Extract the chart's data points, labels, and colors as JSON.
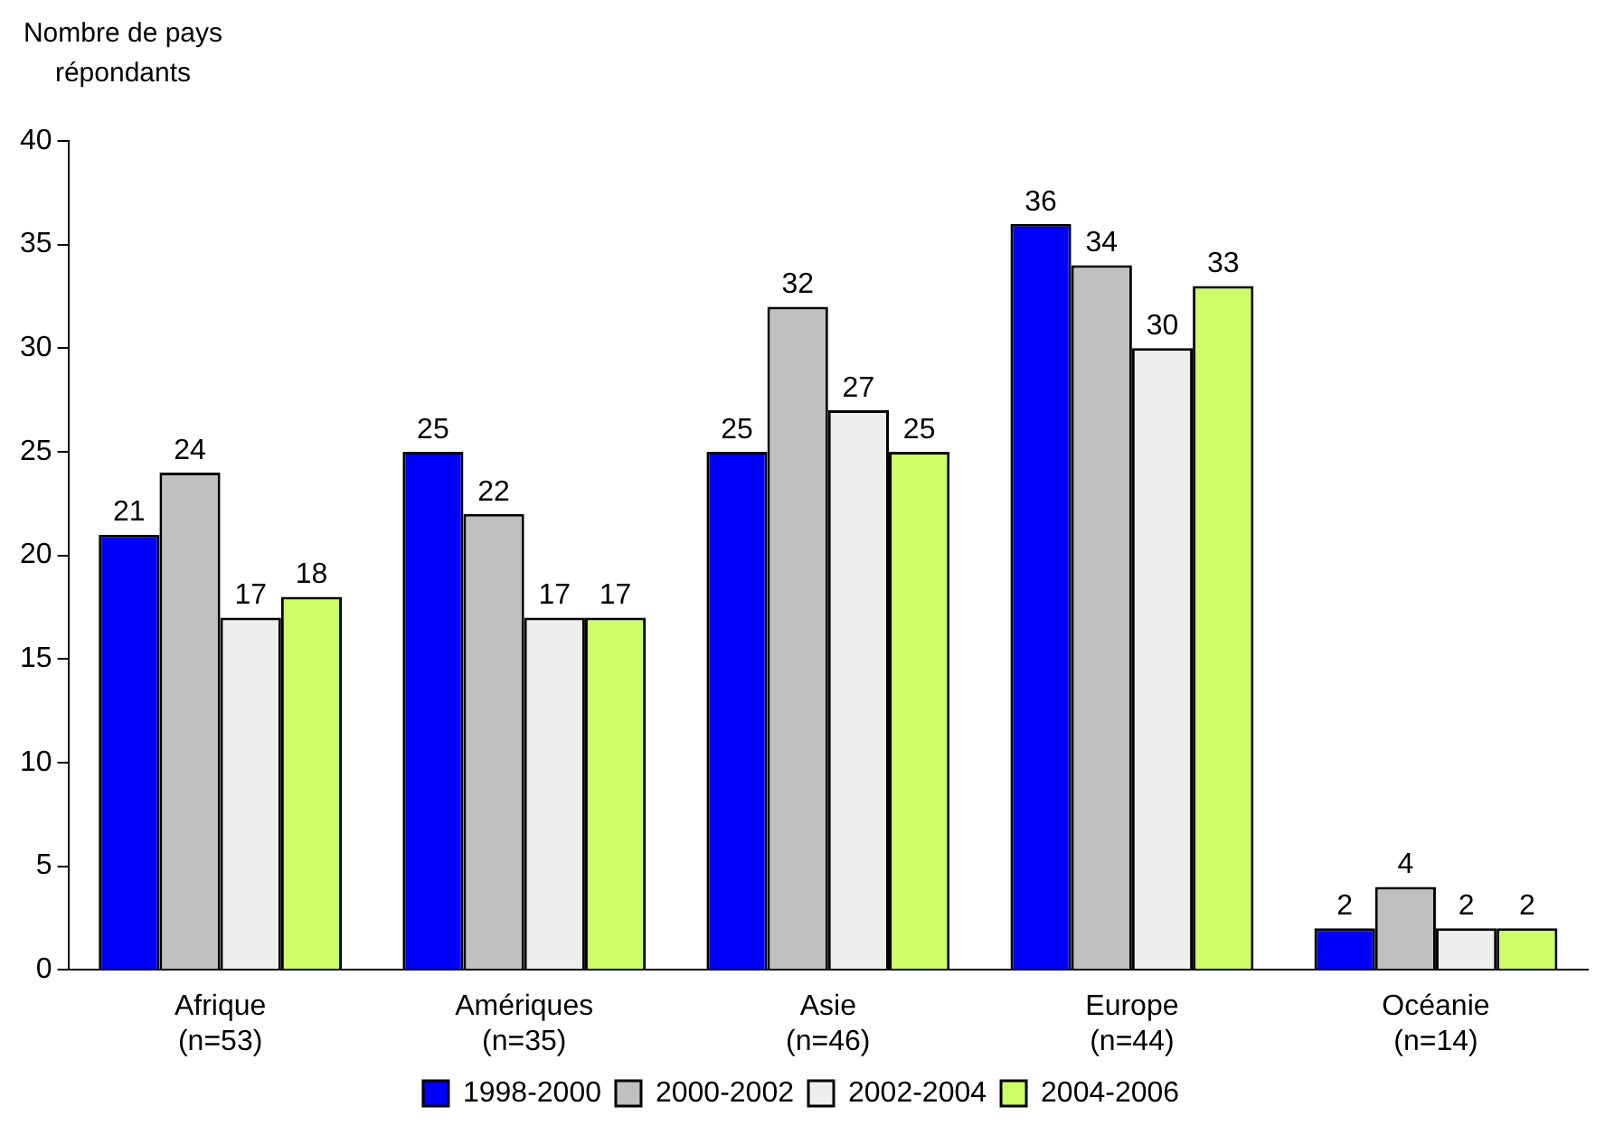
{
  "chart_data": {
    "type": "bar",
    "ylabel": "Nombre de pays répondants",
    "categories": [
      "Afrique (n=53)",
      "Amériques (n=35)",
      "Asie (n=46)",
      "Europe (n=44)",
      "Océanie (n=14)"
    ],
    "series": [
      {
        "name": "1998-2000",
        "color": "#0000ff",
        "values": [
          21,
          25,
          25,
          36,
          2
        ]
      },
      {
        "name": "2000-2002",
        "color": "#c0c0c0",
        "values": [
          24,
          22,
          32,
          34,
          4
        ]
      },
      {
        "name": "2002-2004",
        "color": "#eeeeee",
        "values": [
          17,
          17,
          27,
          30,
          2
        ]
      },
      {
        "name": "2004-2006",
        "color": "#ccff66",
        "values": [
          18,
          17,
          25,
          33,
          2
        ]
      }
    ],
    "ylim": [
      0,
      40
    ],
    "yticks": [
      0,
      5,
      10,
      15,
      20,
      25,
      30,
      35,
      40
    ],
    "grid": false,
    "legend": "bottom",
    "data_labels": true
  }
}
